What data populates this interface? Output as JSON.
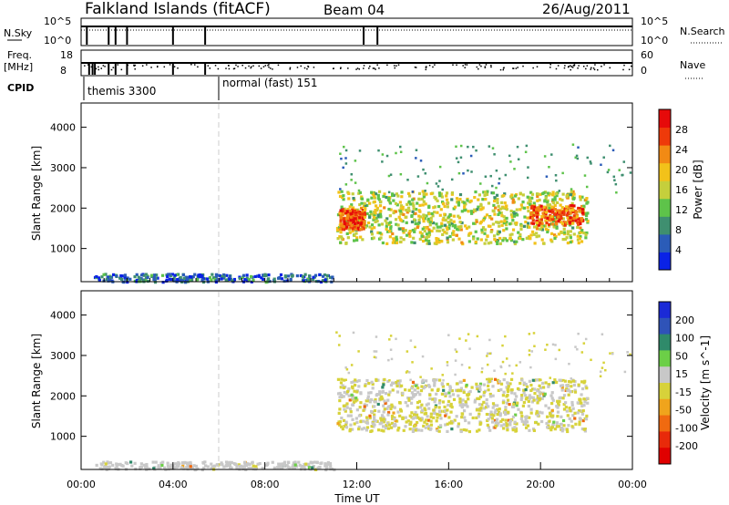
{
  "header": {
    "site": "Falkland Islands (fitACF)",
    "beam": "Beam 04",
    "date": "26/Aug/2011"
  },
  "status_panels": {
    "nsky": {
      "label": "N.Sky",
      "ticks_left": [
        "10^5",
        "10^0"
      ],
      "ticks_right": [
        "10^5",
        "10^0"
      ],
      "right_label": "N.Search"
    },
    "freq": {
      "label_line1": "Freq.",
      "label_line2": "[MHz]",
      "ticks_left": [
        "18",
        "8"
      ],
      "ticks_right": [
        "60",
        "0"
      ],
      "right_label": "Nave"
    },
    "cpid": {
      "label": "CPID",
      "modes": [
        {
          "text": "themis 3300",
          "start_hour": 0
        },
        {
          "text": "normal (fast) 151",
          "start_hour": 6
        }
      ]
    }
  },
  "colors": {
    "power": [
      "#0a22e6",
      "#2b5cb8",
      "#3f8f70",
      "#5ec34a",
      "#c5cf3c",
      "#f2c21a",
      "#f28a14",
      "#ee3a0a",
      "#e60a0a"
    ],
    "velocity": [
      "#1b2ad6",
      "#2f53b8",
      "#2f8a6a",
      "#6ccf47",
      "#c8c8c8",
      "#d7d23a",
      "#f0a41c",
      "#f06a10",
      "#e82a0a",
      "#e00000"
    ]
  },
  "chart_data": [
    {
      "type": "heatmap",
      "quantity": "Power",
      "xlabel": "",
      "ylabel": "Slant Range [km]",
      "xlim": [
        0,
        24
      ],
      "ylim": [
        180,
        4600
      ],
      "yticks": [
        "1000",
        "2000",
        "3000",
        "4000"
      ],
      "colorbar": {
        "label": "Power [dB]",
        "ticks": [
          "4",
          "8",
          "12",
          "16",
          "20",
          "24",
          "28"
        ],
        "range": [
          0,
          32
        ]
      },
      "regions": [
        {
          "x": [
            11.1,
            22.0
          ],
          "y": [
            1150,
            2450
          ],
          "value": 16
        },
        {
          "x": [
            11.2,
            12.3
          ],
          "y": [
            1500,
            2000
          ],
          "value": 26
        },
        {
          "x": [
            19.5,
            21.8
          ],
          "y": [
            1600,
            2100
          ],
          "value": 26
        },
        {
          "x": [
            0.5,
            11.0
          ],
          "y": [
            200,
            400
          ],
          "value": 6
        }
      ]
    },
    {
      "type": "heatmap",
      "quantity": "Velocity",
      "xlabel": "Time UT",
      "ylabel": "Slant Range [km]",
      "xlim": [
        0,
        24
      ],
      "ylim": [
        180,
        4600
      ],
      "xticks": [
        "00:00",
        "04:00",
        "08:00",
        "12:00",
        "16:00",
        "20:00",
        "00:00"
      ],
      "yticks": [
        "1000",
        "2000",
        "3000",
        "4000"
      ],
      "colorbar": {
        "label": "Velocity [m s^-1]",
        "ticks": [
          "200",
          "100",
          "50",
          "15",
          "-15",
          "-50",
          "-100",
          "-200"
        ],
        "range": [
          -250,
          250
        ]
      },
      "regions": [
        {
          "x": [
            11.1,
            22.0
          ],
          "y": [
            1150,
            2450
          ],
          "value": 0
        },
        {
          "x": [
            0.5,
            11.0
          ],
          "y": [
            200,
            400
          ],
          "value": 20
        }
      ]
    }
  ]
}
